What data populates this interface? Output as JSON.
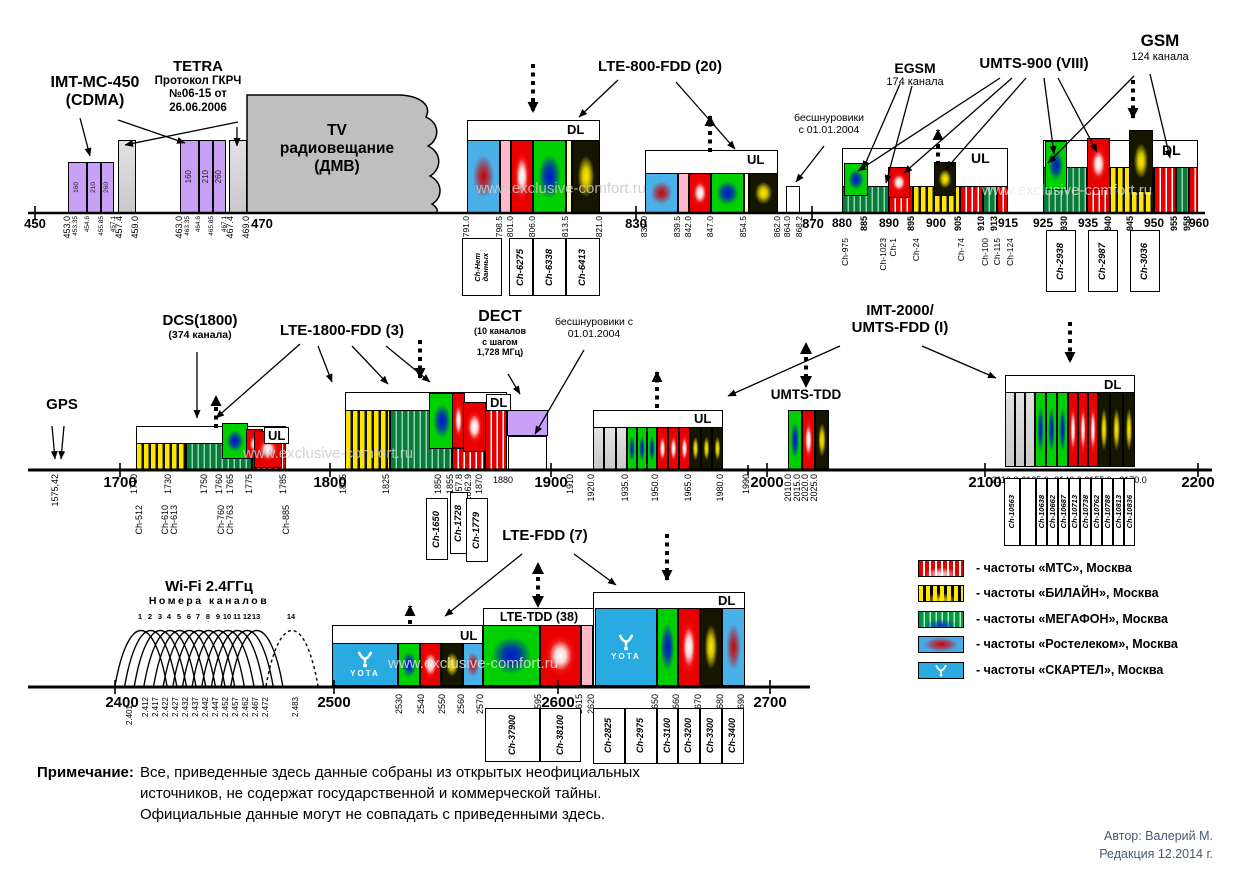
{
  "watermark": "www.exclusive-comfort.ru",
  "labels": {
    "imt_mc": {
      "l1": "IMT-MC-450",
      "l2": "(CDMA)"
    },
    "tetra": {
      "l1": "TETRA",
      "l2": "Протокол ГКРЧ",
      "l3": "№06-15 от",
      "l4": "26.06.2006"
    },
    "tv": {
      "l1": "TV",
      "l2": "радиовещание",
      "l3": "(ДМВ)"
    },
    "lte800": "LTE-800-FDD (20)",
    "cordless1": {
      "l1": "бесшнуровики",
      "l2": "с 01.01.2004"
    },
    "egsm": {
      "l1": "EGSM",
      "l2": "174 канала"
    },
    "umts900": "UMTS-900 (VIII)",
    "gsm": {
      "l1": "GSM",
      "l2": "124 канала"
    },
    "gps": "GPS",
    "dcs": {
      "l1": "DCS(1800)",
      "l2": "(374 канала)"
    },
    "lte1800": "LTE-1800-FDD (3)",
    "dect": {
      "l1": "DECT",
      "l2": "(10 каналов",
      "l3": "с шагом",
      "l4": "1,728 МГц)"
    },
    "cordless2": {
      "l1": "бесшнуровики с",
      "l2": "01.01.2004"
    },
    "imt2000": {
      "l1": "IMT-2000/",
      "l2": "UMTS-FDD (I)"
    },
    "umts_tdd": "UMTS-TDD",
    "wifi": {
      "l1": "Wi-Fi 2.4ГГц",
      "l2": "Номера каналов"
    },
    "lte_fdd7": "LTE-FDD (7)",
    "lte_tdd38": "LTE-TDD (38)",
    "dl": "DL",
    "ul": "UL"
  },
  "ticks": {
    "left450": [
      "450",
      "453.0",
      "453.35",
      "454.6",
      "455.85",
      "457.1",
      "457.4",
      "459.0",
      "463.0",
      "463.35",
      "464.6",
      "465.85",
      "467.1",
      "467.4",
      "469.0",
      "470"
    ],
    "lte800": [
      "791.0",
      "798.5",
      "801.0",
      "806.0",
      "813.5",
      "821.0",
      "830",
      "832.0",
      "839.5",
      "842.0",
      "847.0",
      "854.5",
      "862.0",
      "864.0",
      "868.2",
      "870"
    ],
    "gsm900": [
      "880",
      "885",
      "890",
      "895",
      "900",
      "905",
      "910",
      "913",
      "915",
      "925",
      "930",
      "935",
      "940",
      "945",
      "950",
      "955",
      "958",
      "960"
    ],
    "mid": [
      "1575,42",
      "1700",
      "1710",
      "1730",
      "1750",
      "1760",
      "1765",
      "1775",
      "1785",
      "1800",
      "1805",
      "1825",
      "1850",
      "1855",
      "1857.8",
      "1862.9",
      "1870",
      "1880",
      "1900",
      "1910",
      "1920.0",
      "1935.0",
      "1950.0",
      "1965.0",
      "1980.0",
      "1990",
      "2000",
      "2010.0",
      "2015.0",
      "2020.0",
      "2025.0",
      "2100",
      "2110.0",
      "2125.0",
      "2140.0",
      "2155.0",
      "2170.0",
      "2200"
    ],
    "low": [
      "2400",
      "2500",
      "2530",
      "2540",
      "2550",
      "2560",
      "2570",
      "2595",
      "2600",
      "2615",
      "2620",
      "2650",
      "2660",
      "2670",
      "2680",
      "2690",
      "2700"
    ]
  },
  "wifi": {
    "channels": [
      "1",
      "2",
      "3",
      "4",
      "5",
      "6",
      "7",
      "8",
      "9",
      "10",
      "11",
      "12",
      "13",
      "14"
    ],
    "freqs": [
      "2.401",
      "2.412",
      "2.417",
      "2.422",
      "2.427",
      "2.432",
      "2.437",
      "2.442",
      "2.447",
      "2.452",
      "2.457",
      "2.462",
      "2.467",
      "2.472",
      "2.483"
    ]
  },
  "tetra_cells": [
    "160",
    "210",
    "260"
  ],
  "channels": {
    "lte800_dl": [
      "Ch-Нет данных",
      "Ch-6275",
      "Ch-6338",
      "Ch-6413"
    ],
    "gsm_ul": [
      "Ch-975",
      "Ch-1023",
      "Ch-1",
      "Ch-24",
      "Ch-74",
      "Ch-100",
      "Ch-115",
      "Ch-124"
    ],
    "gsm_dl": [
      "Ch-2938",
      "Ch-2987",
      "Ch-3036"
    ],
    "dcs": [
      "Ch-512",
      "Ch-610",
      "Ch-613",
      "Ch-760",
      "Ch-763",
      "Ch-885"
    ],
    "lte1800": [
      "Ch-1650",
      "Ch-1728",
      "Ch-1779"
    ],
    "umts_dl": [
      "Ch-10563",
      "",
      "Ch-10638",
      "Ch-10662",
      "Ch-10687",
      "Ch-10713",
      "Ch-10738",
      "Ch-10762",
      "Ch-10788",
      "Ch-10813",
      "Ch-10836"
    ],
    "tdd38": [
      "Ch-37900",
      "Ch-38100"
    ],
    "band7_dl": [
      "Ch-2825",
      "Ch-2975",
      "Ch-3100",
      "Ch-3200",
      "Ch-3300",
      "Ch-3400"
    ]
  },
  "brand": {
    "yota": "YOTA"
  },
  "legend": {
    "items": [
      {
        "key": "mts",
        "label": "- частоты «МТС», Москва"
      },
      {
        "key": "beeline",
        "label": "- частоты «БИЛАЙН», Москва"
      },
      {
        "key": "megafon",
        "label": "- частоты «МЕГАФОН», Москва"
      },
      {
        "key": "rostelecom",
        "label": "- частоты «Ростелеком», Москва"
      },
      {
        "key": "skartel",
        "label": "- частоты «СКАРТЕЛ», Москва"
      }
    ]
  },
  "note": {
    "heading": "Примечание:",
    "lines": [
      "Все, приведенные здесь данные собраны из открытых неофициальных",
      "источников, не содержат государственной и коммерческой тайны.",
      "Официальные данные могут не совпадать с приведенными здесь."
    ]
  },
  "author": {
    "line1": "Автор: Валерий М.",
    "line2": "Редакция 12.2014 г."
  },
  "colors": {
    "mts": "#e60000",
    "beeline": "#ffe600",
    "megafon": "#00a03c",
    "rostelecom": "#45aae6",
    "skartel": "#29abe2",
    "purple": "#c9a0f5",
    "gray": "#c9c9c9",
    "dect": "#c9a0f5"
  }
}
